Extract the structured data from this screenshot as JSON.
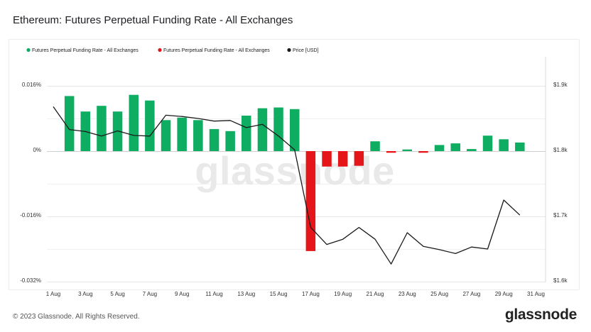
{
  "title": "Ethereum: Futures Perpetual Funding Rate - All Exchanges",
  "footer": {
    "copyright": "© 2023 Glassnode. All Rights Reserved.",
    "logo": "glassnode"
  },
  "watermark": "glassnode",
  "colors": {
    "positive": "#0fad62",
    "negative": "#e5161a",
    "price": "#1a1a1a",
    "grid": "#e6e6e6"
  },
  "chart_data": {
    "type": "bar",
    "title": "Ethereum: Futures Perpetual Funding Rate - All Exchanges",
    "legend": [
      {
        "label": "Futures Perpetual Funding Rate - All Exchanges",
        "color": "#0fad62"
      },
      {
        "label": "Futures Perpetual Funding Rate - All Exchanges",
        "color": "#e5161a"
      },
      {
        "label": "Price [USD]",
        "color": "#1a1a1a"
      }
    ],
    "legend_position": "top-left",
    "x_tick_labels": [
      "1 Aug",
      "3 Aug",
      "5 Aug",
      "7 Aug",
      "9 Aug",
      "11 Aug",
      "13 Aug",
      "15 Aug",
      "17 Aug",
      "19 Aug",
      "21 Aug",
      "23 Aug",
      "25 Aug",
      "27 Aug",
      "29 Aug",
      "31 Aug"
    ],
    "y_left": {
      "ticks": [
        "0.016%",
        "0%",
        "-0.016%",
        "-0.032%"
      ],
      "ylim": [
        -0.032,
        0.016
      ],
      "unit": "%"
    },
    "y_right": {
      "ticks": [
        "$1.9k",
        "$1.8k",
        "$1.7k",
        "$1.6k"
      ],
      "ylim": [
        1600,
        1900
      ],
      "unit": "USD"
    },
    "dates": [
      "2023-08-02",
      "2023-08-03",
      "2023-08-04",
      "2023-08-05",
      "2023-08-06",
      "2023-08-07",
      "2023-08-08",
      "2023-08-09",
      "2023-08-10",
      "2023-08-11",
      "2023-08-12",
      "2023-08-13",
      "2023-08-14",
      "2023-08-15",
      "2023-08-16",
      "2023-08-17",
      "2023-08-18",
      "2023-08-19",
      "2023-08-20",
      "2023-08-21",
      "2023-08-22",
      "2023-08-23",
      "2023-08-24",
      "2023-08-25",
      "2023-08-26",
      "2023-08-27",
      "2023-08-28",
      "2023-08-29",
      "2023-08-30"
    ],
    "series": [
      {
        "name": "Futures Perpetual Funding Rate - All Exchanges",
        "axis": "left",
        "values": [
          0.0135,
          0.0097,
          0.0111,
          0.0097,
          0.0138,
          0.0124,
          0.0076,
          0.0082,
          0.0076,
          0.0054,
          0.0049,
          0.0087,
          0.0105,
          0.0107,
          0.0103,
          -0.0245,
          -0.0038,
          -0.0038,
          -0.0036,
          0.0024,
          -0.0004,
          0.0004,
          -0.0004,
          0.0015,
          0.0019,
          0.0005,
          0.0038,
          0.0029,
          0.0021
        ]
      },
      {
        "name": "Price [USD]",
        "axis": "right",
        "x": [
          "2023-08-01",
          "2023-08-02",
          "2023-08-03",
          "2023-08-04",
          "2023-08-05",
          "2023-08-06",
          "2023-08-07",
          "2023-08-08",
          "2023-08-09",
          "2023-08-10",
          "2023-08-11",
          "2023-08-12",
          "2023-08-13",
          "2023-08-14",
          "2023-08-15",
          "2023-08-16",
          "2023-08-17",
          "2023-08-18",
          "2023-08-19",
          "2023-08-20",
          "2023-08-21",
          "2023-08-22",
          "2023-08-23",
          "2023-08-24",
          "2023-08-25",
          "2023-08-26",
          "2023-08-27",
          "2023-08-28",
          "2023-08-29",
          "2023-08-30"
        ],
        "values": [
          1868,
          1833,
          1830,
          1823,
          1831,
          1824,
          1823,
          1855,
          1853,
          1850,
          1846,
          1847,
          1836,
          1841,
          1823,
          1802,
          1683,
          1657,
          1665,
          1683,
          1665,
          1627,
          1675,
          1654,
          1649,
          1643,
          1653,
          1650,
          1725,
          1702
        ]
      }
    ],
    "grid": true
  }
}
